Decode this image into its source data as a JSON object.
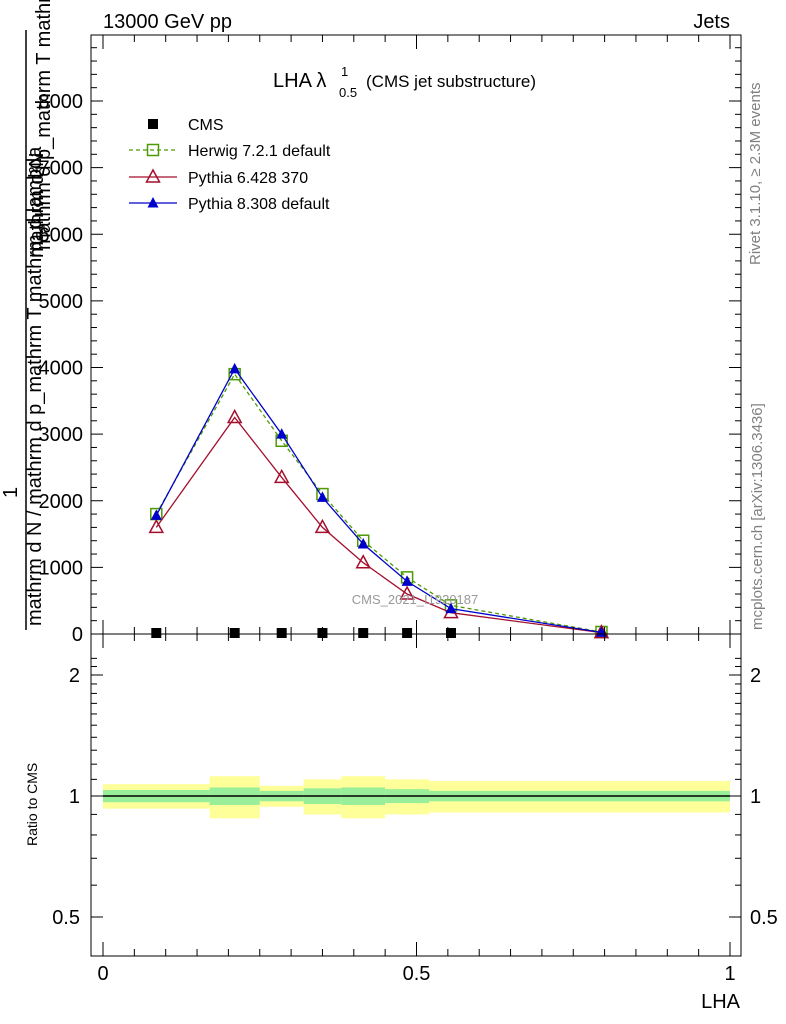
{
  "header": {
    "left": "13000 GeV pp",
    "right": "Jets"
  },
  "side_text": {
    "rivet": "Rivet 3.1.10, ≥ 2.3M events",
    "mcplots": "mcplots.cern.ch [arXiv:1306.3436]"
  },
  "watermark": "CMS_2021_I1920187",
  "chart_data": {
    "type": "line",
    "title": "LHA λ",
    "title_sup": "1",
    "title_sub": "0.5",
    "subtitle": "(CMS jet substructure)",
    "xlabel": "LHA",
    "ylabel_top": "mathrm d²N",
    "ylabel_one": "1",
    "ylabel_bottom": "mathrm d N / mathrm d p_mathrm T mathrm d lambda",
    "ylabel_denom": "mathrm d p_mathrm T mathrm d lambda",
    "xlim": [
      0,
      1
    ],
    "ylim": [
      0,
      9000
    ],
    "x_ticks": [
      "0",
      "0.5",
      "1"
    ],
    "y_ticks": [
      "0",
      "1000",
      "2000",
      "3000",
      "4000",
      "5000",
      "6000",
      "7000",
      "8000"
    ],
    "x": [
      0.085,
      0.21,
      0.285,
      0.35,
      0.415,
      0.485,
      0.555,
      0.795
    ],
    "series": [
      {
        "name": "CMS",
        "color": "#000000",
        "values": [
          15,
          15,
          15,
          15,
          15,
          15,
          15,
          0
        ]
      },
      {
        "name": "Herwig 7.2.1 default",
        "color": "#4e9a06",
        "values": [
          1800,
          3900,
          2900,
          2100,
          1400,
          850,
          430,
          30
        ]
      },
      {
        "name": "Pythia 6.428 370",
        "color": "#a40f2d",
        "values": [
          1600,
          3250,
          2350,
          1600,
          1070,
          600,
          320,
          20
        ]
      },
      {
        "name": "Pythia 8.308 default",
        "color": "#0000cc",
        "values": [
          1780,
          3980,
          3000,
          2050,
          1350,
          790,
          380,
          25
        ]
      }
    ],
    "ratio": {
      "ylabel": "Ratio to CMS",
      "y_ticks": [
        "0.5",
        "1",
        "2"
      ],
      "bins": [
        {
          "lo": 0.0,
          "hi": 0.17,
          "stat": 0.035,
          "tot": 0.07
        },
        {
          "lo": 0.17,
          "hi": 0.25,
          "stat": 0.05,
          "tot": 0.12
        },
        {
          "lo": 0.25,
          "hi": 0.32,
          "stat": 0.03,
          "tot": 0.06
        },
        {
          "lo": 0.32,
          "hi": 0.38,
          "stat": 0.045,
          "tot": 0.1
        },
        {
          "lo": 0.38,
          "hi": 0.45,
          "stat": 0.05,
          "tot": 0.12
        },
        {
          "lo": 0.45,
          "hi": 0.52,
          "stat": 0.04,
          "tot": 0.1
        },
        {
          "lo": 0.52,
          "hi": 1.0,
          "stat": 0.03,
          "tot": 0.09
        }
      ]
    }
  }
}
